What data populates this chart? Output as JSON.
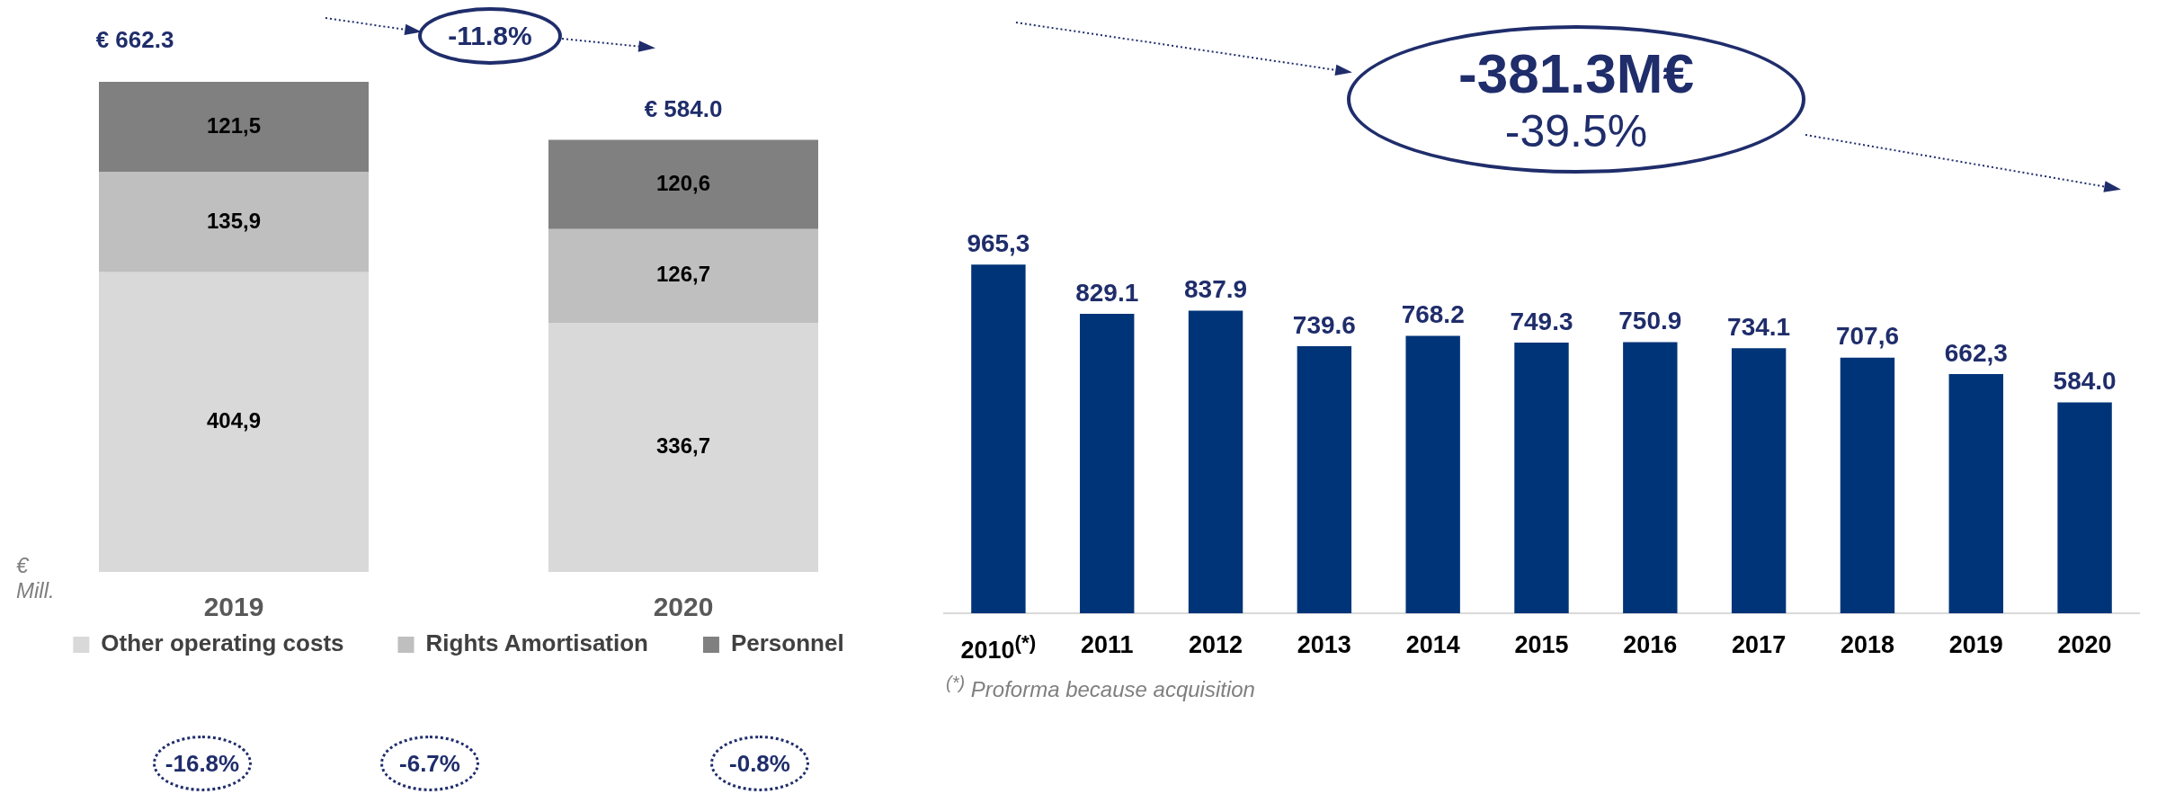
{
  "chart_data": [
    {
      "type": "bar",
      "stacked": true,
      "categories": [
        "2019",
        "2020"
      ],
      "legend": "bottom",
      "grid": false,
      "series": [
        {
          "name": "Other operating costs",
          "color": "#d9d9d9",
          "values": [
            404.9,
            336.7
          ],
          "value_labels": [
            "404,9",
            "336,7"
          ]
        },
        {
          "name": "Rights Amortisation",
          "color": "#bfbfbf",
          "values": [
            135.9,
            126.7
          ],
          "value_labels": [
            "135,9",
            "126,7"
          ]
        },
        {
          "name": "Personnel",
          "color": "#808080",
          "values": [
            121.5,
            120.6
          ],
          "value_labels": [
            "121,5",
            "120,6"
          ]
        }
      ],
      "totals": [
        "€ 662.3",
        "€ 584.0"
      ],
      "annotations": [
        "-11.8%",
        "-16.8%",
        "-6.7%",
        "-0.8%",
        "€ Mill."
      ]
    },
    {
      "type": "bar",
      "grid": false,
      "categories": [
        "2010$^{(*)}$",
        "2011",
        "2012",
        "2013",
        "2014",
        "2015",
        "2016",
        "2017",
        "2018",
        "2019",
        "2020"
      ],
      "series": [
        {
          "color": "#003478",
          "values": [
            965.3,
            829.1,
            837.9,
            739.6,
            768.2,
            749.3,
            750.9,
            734.1,
            707.6,
            662.3,
            584.0
          ],
          "value_labels": [
            "965,3",
            "829.1",
            "837.9",
            "739.6",
            "768.2",
            "749.3",
            "750.9",
            "734.1",
            "707,6",
            "662,3",
            "584.0"
          ]
        }
      ],
      "annotations": [
        "-381.3M€",
        "-39.5%",
        "$^{(*)}$ Proforma because acquisition"
      ]
    }
  ]
}
